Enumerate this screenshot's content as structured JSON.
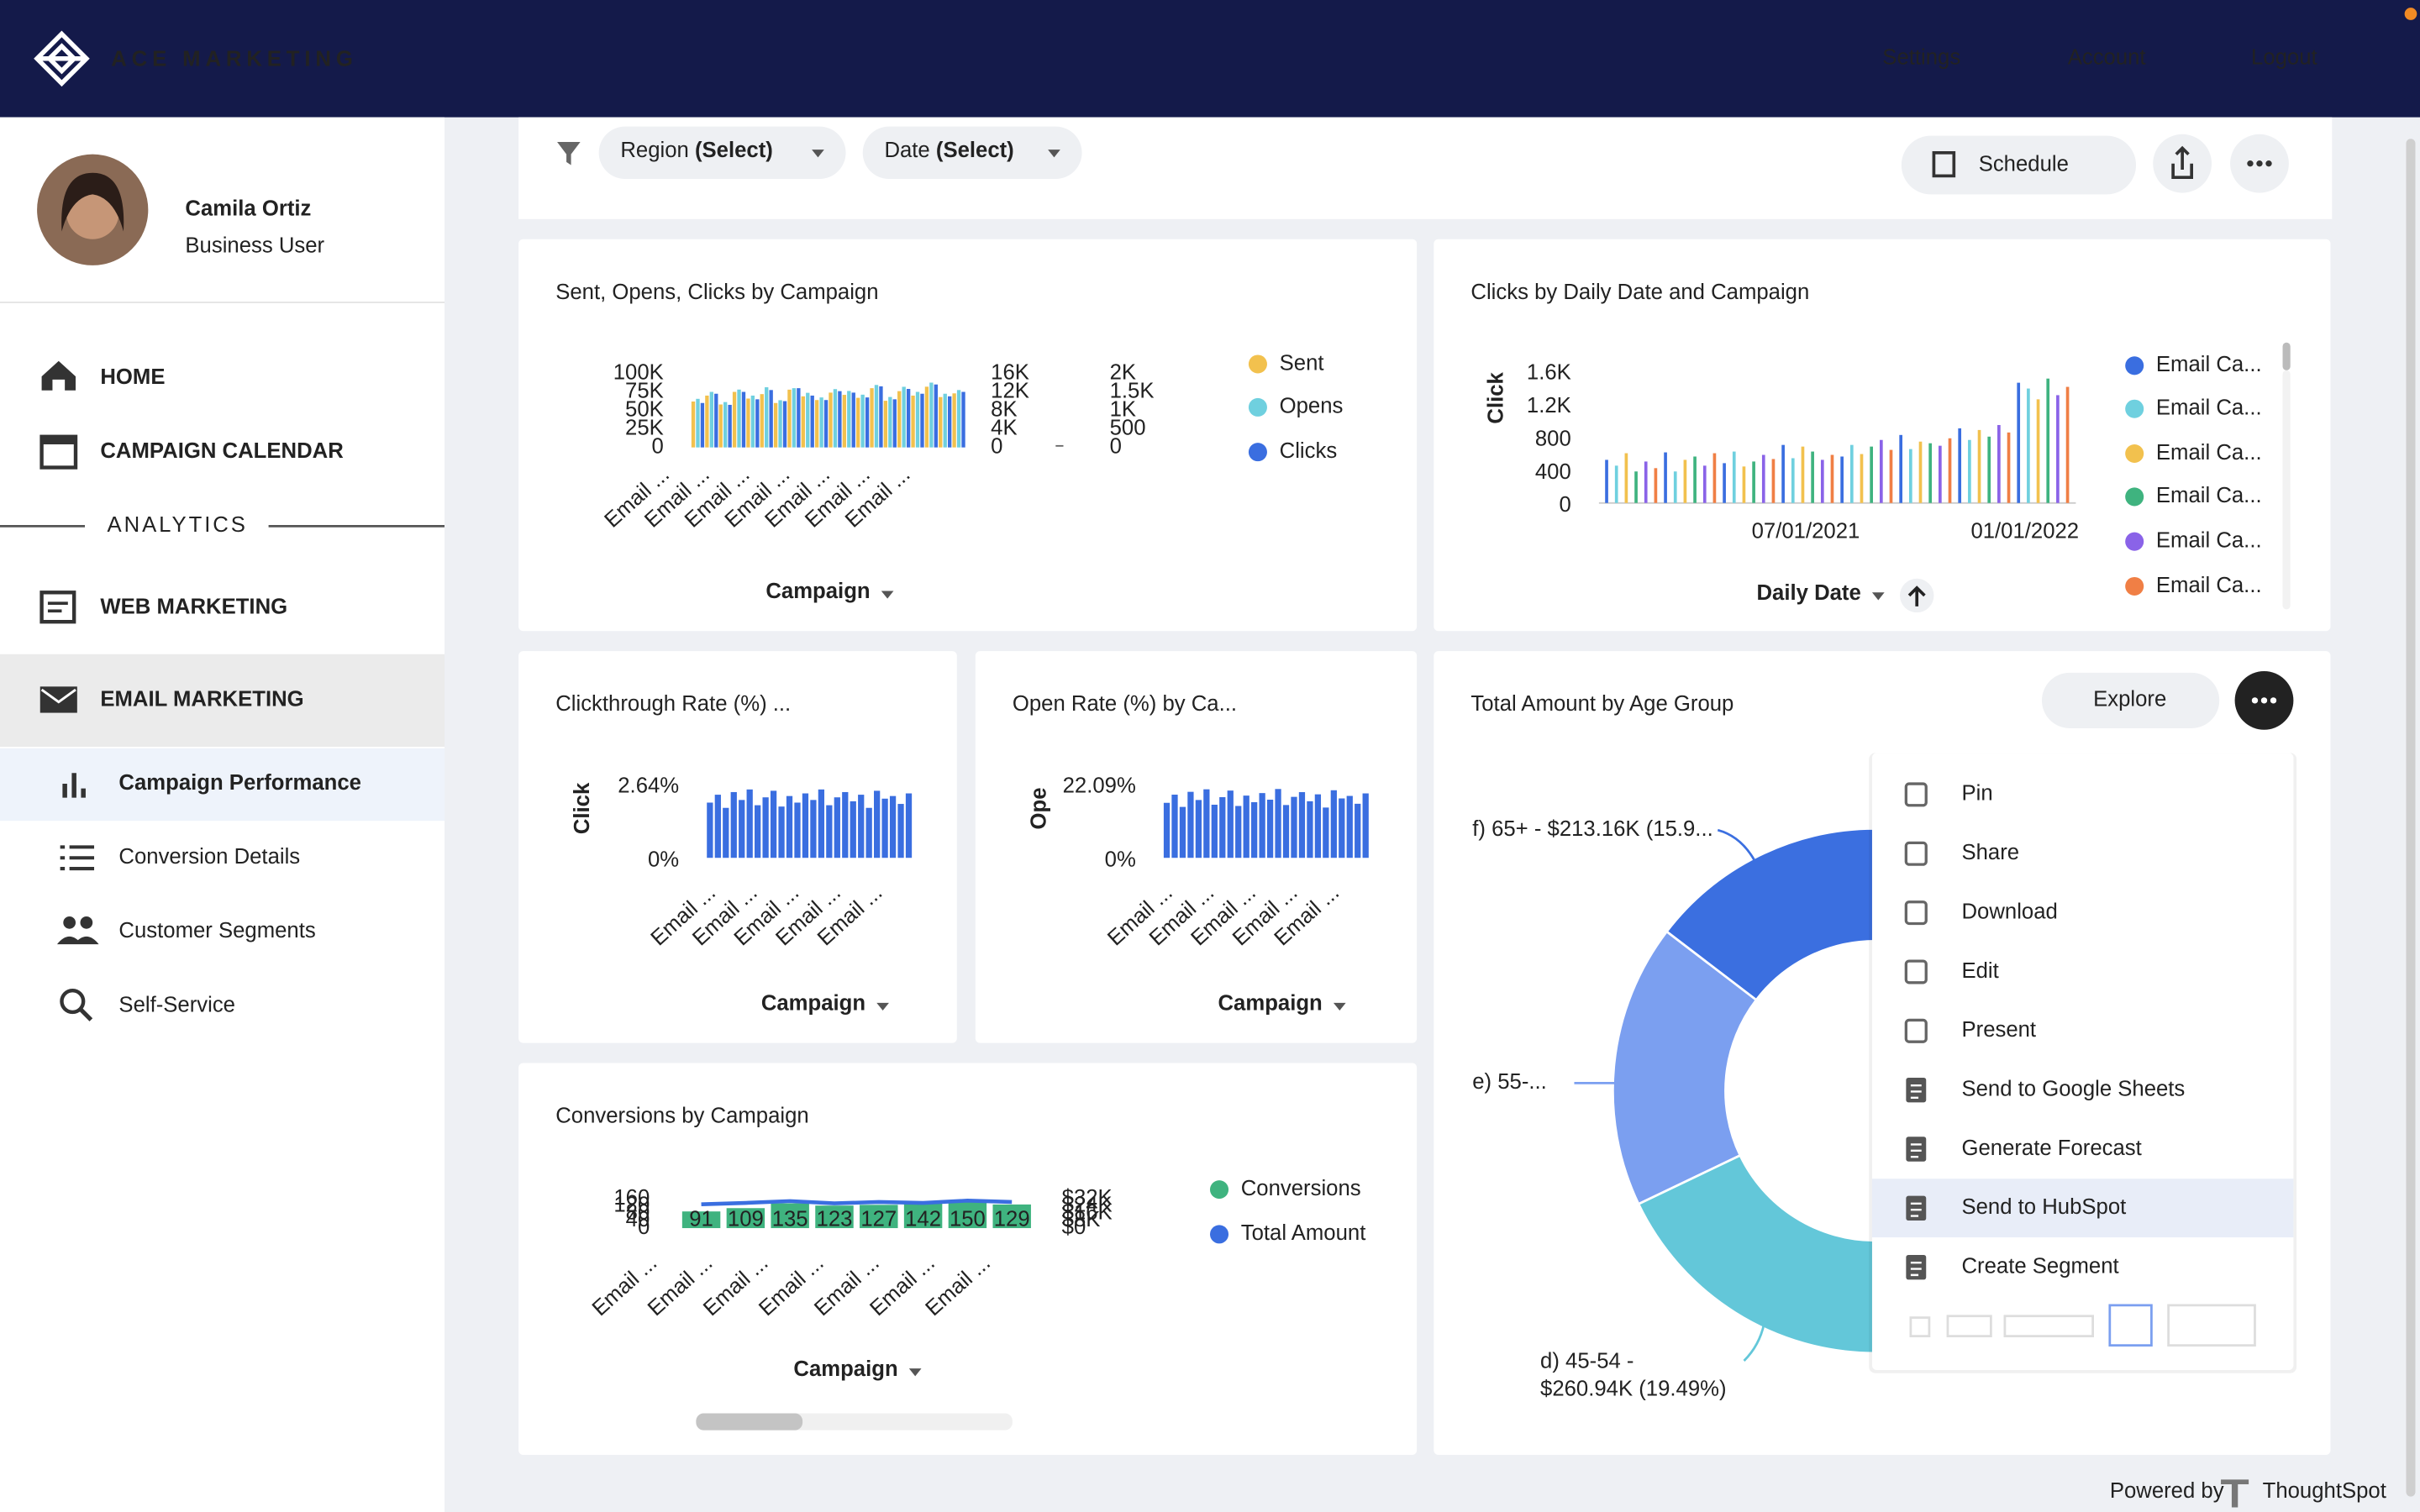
{
  "header": {
    "brand": "ACE MARKETING",
    "nav": [
      "Settings",
      "Account",
      "Logout"
    ]
  },
  "user": {
    "name": "Camila Ortiz",
    "role": "Business User"
  },
  "sidebar": {
    "main": [
      "HOME",
      "CAMPAIGN CALENDAR"
    ],
    "section": "ANALYTICS",
    "analytics": [
      "WEB MARKETING",
      "EMAIL MARKETING"
    ],
    "sub": [
      "Campaign Performance",
      "Conversion Details",
      "Customer Segments",
      "Self-Service"
    ]
  },
  "toolbar": {
    "filters": [
      {
        "label": "Region",
        "value": "(Select)"
      },
      {
        "label": "Date",
        "value": "(Select)"
      }
    ],
    "schedule": "Schedule"
  },
  "charts": [
    {
      "type": "bar",
      "title": "Sent, Opens, Clicks by Campaign",
      "x_title": "Campaign",
      "x_labels": [
        "Email ...",
        "Email ...",
        "Email ...",
        "Email ...",
        "Email ...",
        "Email ...",
        "Email ..."
      ],
      "ylim": [
        0,
        100000
      ],
      "yticks": [
        {
          "value": 100000,
          "label": "100K"
        },
        {
          "value": 75000,
          "label": "75K"
        },
        {
          "value": 50000,
          "label": "50K"
        },
        {
          "value": 25000,
          "label": "25K"
        },
        0
      ],
      "y2lim": [
        0,
        16000
      ],
      "y2ticks": [
        {
          "value": 16000,
          "label": "16K"
        },
        {
          "value": 12000,
          "label": "12K"
        },
        {
          "value": 8000,
          "label": "8K"
        },
        {
          "value": 4000,
          "label": "4K"
        },
        0
      ],
      "y3lim": [
        0,
        2000
      ],
      "y3ticks": [
        {
          "value": 2000,
          "label": "2K"
        },
        {
          "value": 1500,
          "label": "1.5K"
        },
        {
          "value": 1000,
          "label": "1K"
        },
        500,
        0
      ],
      "series": [
        {
          "name": "Sent",
          "color": "#f2c14e",
          "axis": "y",
          "values": [
            62000,
            70000,
            58000,
            75000,
            66000,
            72000,
            60000,
            78000,
            69000,
            64000,
            74000,
            71000,
            67000,
            80000,
            63000,
            76000,
            70000,
            82000,
            68000,
            73000
          ]
        },
        {
          "name": "Opens",
          "color": "#6fd0df",
          "axis": "y2",
          "values": [
            10500,
            12000,
            9800,
            12500,
            11200,
            13000,
            10200,
            12800,
            11800,
            10800,
            12600,
            12200,
            11400,
            13500,
            10900,
            13100,
            12000,
            14000,
            11600,
            12400
          ]
        },
        {
          "name": "Clicks",
          "color": "#3a6ee0",
          "axis": "y3",
          "values": [
            1200,
            1450,
            1150,
            1500,
            1300,
            1550,
            1250,
            1600,
            1400,
            1280,
            1520,
            1480,
            1350,
            1650,
            1300,
            1580,
            1450,
            1700,
            1380,
            1500
          ]
        }
      ]
    },
    {
      "type": "bar",
      "title": "Clicks by Daily Date and Campaign",
      "x_title": "Daily Date",
      "y_title": "Click",
      "x_labels": [
        "07/01/2021",
        "01/01/2022"
      ],
      "ylim": [
        0,
        1600
      ],
      "yticks": [
        {
          "value": 1600,
          "label": "1.6K"
        },
        {
          "value": 1200,
          "label": "1.2K"
        },
        800,
        400,
        0
      ],
      "series": [
        {
          "name": "Email Ca...",
          "color": "#3a6ee0",
          "values": [
            520,
            610,
            480,
            700,
            560,
            820,
            900,
            1450
          ]
        },
        {
          "name": "Email Ca...",
          "color": "#6fd0df",
          "values": [
            450,
            380,
            620,
            540,
            700,
            650,
            760,
            1380
          ]
        },
        {
          "name": "Email Ca...",
          "color": "#f2c14e",
          "values": [
            600,
            520,
            440,
            680,
            590,
            740,
            880,
            1250
          ]
        },
        {
          "name": "Email Ca...",
          "color": "#3fb37f",
          "values": [
            380,
            560,
            500,
            620,
            680,
            720,
            800,
            1500
          ]
        },
        {
          "name": "Email Ca...",
          "color": "#8a63e8",
          "values": [
            500,
            450,
            580,
            520,
            760,
            690,
            940,
            1300
          ]
        },
        {
          "name": "Email Ca...",
          "color": "#f07f45",
          "values": [
            420,
            600,
            530,
            580,
            640,
            780,
            850,
            1400
          ]
        }
      ]
    },
    {
      "type": "bar",
      "title": "Clickthrough Rate (%) ...",
      "x_title": "Campaign",
      "y_title": "Click",
      "color": "#3a6ee0",
      "x_labels": [
        "Email ...",
        "Email ...",
        "Email ...",
        "Email ...",
        "Email ..."
      ],
      "ylim": [
        0,
        2.64
      ],
      "yticks": [
        {
          "value": 2.64,
          "label": "2.64%"
        },
        {
          "value": 0,
          "label": "0%"
        }
      ],
      "values": [
        2.1,
        2.4,
        1.9,
        2.5,
        2.2,
        2.6,
        2.0,
        2.3,
        2.55,
        1.95,
        2.35,
        2.1,
        2.45,
        2.2,
        2.6,
        2.0,
        2.3,
        2.5,
        2.15,
        2.4,
        1.9,
        2.55,
        2.25,
        2.35,
        2.05,
        2.45
      ]
    },
    {
      "type": "bar",
      "title": "Open Rate (%) by Ca...",
      "x_title": "Campaign",
      "y_title": "Ope",
      "color": "#3a6ee0",
      "x_labels": [
        "Email ...",
        "Email ...",
        "Email ...",
        "Email ...",
        "Email ..."
      ],
      "ylim": [
        0,
        22.09
      ],
      "yticks": [
        {
          "value": 22.09,
          "label": "22.09%"
        },
        {
          "value": 0,
          "label": "0%"
        }
      ],
      "values": [
        17.5,
        20.1,
        16.2,
        21.0,
        18.4,
        21.8,
        16.9,
        19.3,
        21.4,
        16.5,
        19.8,
        17.7,
        20.6,
        18.5,
        21.9,
        16.8,
        19.4,
        20.9,
        18.0,
        20.2,
        16.0,
        21.5,
        18.9,
        19.7,
        17.2,
        20.5
      ]
    },
    {
      "type": "combo",
      "title": "Conversions by Campaign",
      "x_title": "Campaign",
      "x_labels": [
        "Email ...",
        "Email ...",
        "Email ...",
        "Email ...",
        "Email ...",
        "Email ...",
        "Email ..."
      ],
      "ylim": [
        0,
        160
      ],
      "yticks": [
        160,
        120,
        80,
        40,
        0
      ],
      "y2lim": [
        0,
        32000
      ],
      "y2ticks": [
        {
          "value": 32000,
          "label": "$32K"
        },
        {
          "value": 24000,
          "label": "$24K"
        },
        {
          "value": 16000,
          "label": "$16K"
        },
        {
          "value": 8000,
          "label": "$8K"
        },
        {
          "value": 0,
          "label": "$0"
        }
      ],
      "series": [
        {
          "name": "Conversions",
          "color": "#3fb37f",
          "values": [
            91,
            109,
            135,
            123,
            127,
            142,
            150,
            129
          ]
        },
        {
          "name": "Total Amount",
          "color": "#3a6ee0",
          "axis": "y2",
          "values": [
            26000,
            27500,
            29500,
            27000,
            28500,
            27500,
            30000,
            28500
          ]
        }
      ]
    },
    {
      "type": "donut",
      "title": "Total Amount by Age Group",
      "explore": "Explore",
      "labels": [
        [
          "f) 65+ - $213.16K (15.9..."
        ],
        [
          "e) 55-..."
        ],
        [
          "d) 45-54 -",
          "$260.94K (19.49%)"
        ]
      ],
      "values": [
        213160,
        255000,
        260940
      ],
      "colors": [
        "#3b6fe0",
        "#7b9ff0",
        "#63c7d9"
      ]
    }
  ],
  "menu": {
    "items": [
      "Pin",
      "Share",
      "Download",
      "Edit",
      "Present",
      "Send to Google Sheets",
      "Generate Forecast",
      "Send to HubSpot",
      "Create Segment"
    ],
    "highlighted": 7
  },
  "footer": {
    "powered": "Powered by",
    "brand": "ThoughtSpot"
  }
}
